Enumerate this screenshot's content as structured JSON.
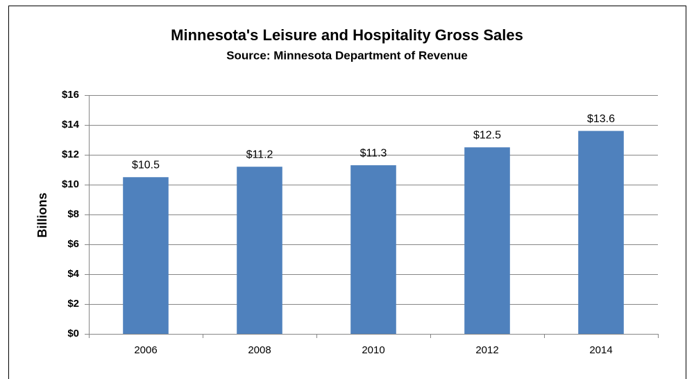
{
  "chart_data": {
    "type": "bar",
    "title": "Minnesota's Leisure and Hospitality Gross Sales",
    "subtitle": "Source: Minnesota Department of Revenue",
    "y_label": "Billions",
    "categories": [
      "2006",
      "2008",
      "2010",
      "2012",
      "2014"
    ],
    "values": [
      10.5,
      11.2,
      11.3,
      12.5,
      13.6
    ],
    "value_labels": [
      "$10.5",
      "$11.2",
      "$11.3",
      "$12.5",
      "$13.6"
    ],
    "color": "#4f81bd",
    "ylim": [
      0,
      16
    ],
    "yticks": [
      {
        "value": 0,
        "label": "$0"
      },
      {
        "value": 2,
        "label": "$2"
      },
      {
        "value": 4,
        "label": "$4"
      },
      {
        "value": 6,
        "label": "$6"
      },
      {
        "value": 8,
        "label": "$8"
      },
      {
        "value": 10,
        "label": "$10"
      },
      {
        "value": 12,
        "label": "$12"
      },
      {
        "value": 14,
        "label": "$14"
      },
      {
        "value": 16,
        "label": "$16"
      }
    ],
    "grid": true
  }
}
